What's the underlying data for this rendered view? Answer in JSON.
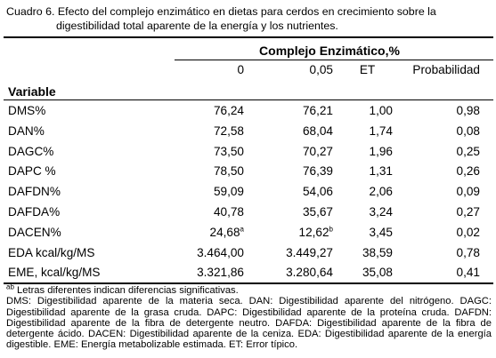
{
  "caption": {
    "line1": "Cuadro 6. Efecto del complejo enzimático en dietas para cerdos en crecimiento sobre la",
    "line2": "digestibilidad total aparente de la energía y los nutrientes."
  },
  "header": {
    "group": "Complejo Enzimático,%",
    "columns": [
      "0",
      "0,05",
      "ET",
      "Probabilidad"
    ],
    "variable": "Variable"
  },
  "rows": [
    {
      "label": "DMS%",
      "v0": "76,24",
      "v1": "76,21",
      "et": "1,00",
      "p": "0,98"
    },
    {
      "label": "DAN%",
      "v0": "72,58",
      "v1": "68,04",
      "et": "1,74",
      "p": "0,08"
    },
    {
      "label": "DAGC%",
      "v0": "73,50",
      "v1": "70,27",
      "et": "1,96",
      "p": "0,25"
    },
    {
      "label": "DAPC %",
      "v0": "78,50",
      "v1": "76,39",
      "et": "1,31",
      "p": "0,26"
    },
    {
      "label": "DAFDN%",
      "v0": "59,09",
      "v1": "54,06",
      "et": "2,06",
      "p": "0,09"
    },
    {
      "label": "DAFDA%",
      "v0": "40,78",
      "v1": "35,67",
      "et": "3,24",
      "p": "0,27"
    },
    {
      "label": "DACEN%",
      "v0": "24,68",
      "v0_sup": "a",
      "v1": "12,62",
      "v1_sup": "b",
      "et": "3,45",
      "p": "0,02"
    },
    {
      "label": "EDA kcal/kg/MS",
      "v0": "3.464,00",
      "v1": "3.449,27",
      "et": "38,59",
      "p": "0,78"
    },
    {
      "label": "EME, kcal/kg/MS",
      "v0": "3.321,86",
      "v1": "3.280,64",
      "et": "35,08",
      "p": "0,41"
    }
  ],
  "notes": {
    "sup": "ab",
    "letters": " Letras diferentes indican diferencias significativas.",
    "abbrev": "DMS: Digestibilidad aparente de la materia seca. DAN: Digestibilidad aparente del nitrógeno. DAGC: Digestibilidad aparente de la grasa cruda. DAPC: Digestibilidad aparente de la proteína cruda. DAFDN: Digestibilidad aparente de la fibra de detergente neutro. DAFDA: Digestibilidad aparente de la fibra de detergente ácido. DACEN: Digestibilidad aparente de la ceniza. EDA: Digestibilidad aparente de la energía digestible. EME: Energía metabolizable estimada. ET: Error típico."
  }
}
